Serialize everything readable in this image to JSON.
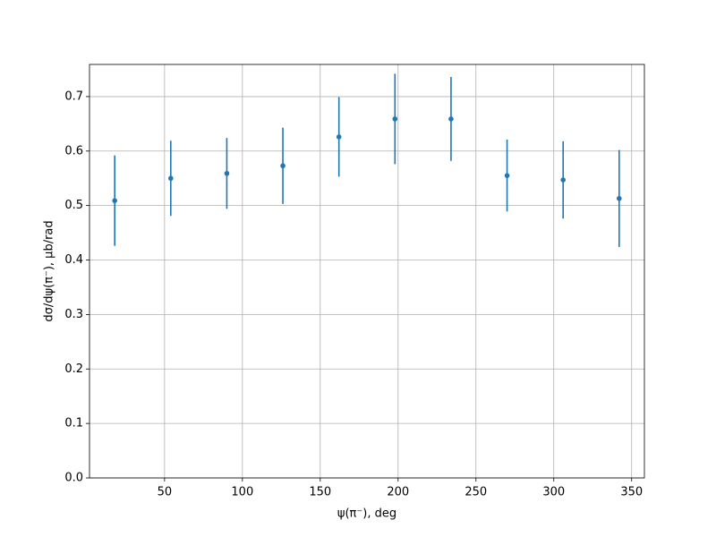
{
  "chart_data": {
    "type": "errorbar",
    "x_label": "ψ(π⁻), deg",
    "y_label": "dσ/dψ(π⁻), μb/rad",
    "x": [
      18,
      54,
      90,
      126,
      162,
      198,
      234,
      270,
      306,
      342
    ],
    "values": [
      0.509,
      0.55,
      0.559,
      0.573,
      0.626,
      0.659,
      0.659,
      0.555,
      0.547,
      0.513
    ],
    "errors": [
      0.083,
      0.069,
      0.065,
      0.07,
      0.073,
      0.083,
      0.077,
      0.066,
      0.071,
      0.089
    ],
    "color": "#1f77b4",
    "xlim": [
      1.8,
      358.2
    ],
    "xticks": [
      50,
      100,
      150,
      200,
      250,
      300,
      350
    ],
    "ylim": [
      0,
      0.759
    ],
    "yticks": [
      {
        "value": 0,
        "label": "0.0"
      },
      0.1,
      0.2,
      0.3,
      0.4,
      0.5,
      0.6,
      0.7
    ],
    "grid": true
  }
}
